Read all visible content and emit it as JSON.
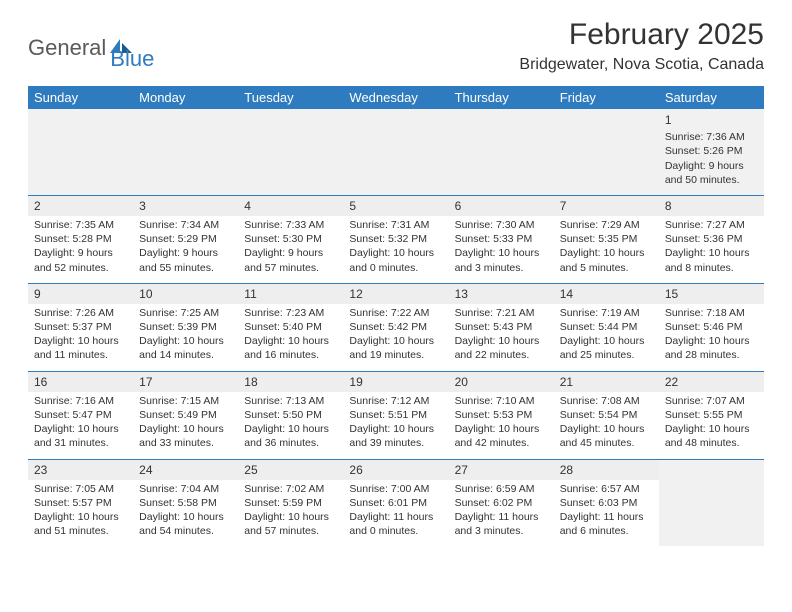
{
  "logo": {
    "part1": "General",
    "part2": "Blue"
  },
  "title": "February 2025",
  "location": "Bridgewater, Nova Scotia, Canada",
  "colors": {
    "header_bg": "#2f7bbf",
    "header_fg": "#ffffff",
    "rule": "#2f7bbf",
    "empty_bg": "#f1f1f1",
    "daynum_bg": "#eeeeee",
    "text": "#333333",
    "logo_gray": "#5a5a5a",
    "logo_blue": "#2f7bbf"
  },
  "dayHeaders": [
    "Sunday",
    "Monday",
    "Tuesday",
    "Wednesday",
    "Thursday",
    "Friday",
    "Saturday"
  ],
  "weeks": [
    [
      null,
      null,
      null,
      null,
      null,
      null,
      {
        "n": "1",
        "sunrise": "7:36 AM",
        "sunset": "5:26 PM",
        "daylight": "9 hours and 50 minutes."
      }
    ],
    [
      {
        "n": "2",
        "sunrise": "7:35 AM",
        "sunset": "5:28 PM",
        "daylight": "9 hours and 52 minutes."
      },
      {
        "n": "3",
        "sunrise": "7:34 AM",
        "sunset": "5:29 PM",
        "daylight": "9 hours and 55 minutes."
      },
      {
        "n": "4",
        "sunrise": "7:33 AM",
        "sunset": "5:30 PM",
        "daylight": "9 hours and 57 minutes."
      },
      {
        "n": "5",
        "sunrise": "7:31 AM",
        "sunset": "5:32 PM",
        "daylight": "10 hours and 0 minutes."
      },
      {
        "n": "6",
        "sunrise": "7:30 AM",
        "sunset": "5:33 PM",
        "daylight": "10 hours and 3 minutes."
      },
      {
        "n": "7",
        "sunrise": "7:29 AM",
        "sunset": "5:35 PM",
        "daylight": "10 hours and 5 minutes."
      },
      {
        "n": "8",
        "sunrise": "7:27 AM",
        "sunset": "5:36 PM",
        "daylight": "10 hours and 8 minutes."
      }
    ],
    [
      {
        "n": "9",
        "sunrise": "7:26 AM",
        "sunset": "5:37 PM",
        "daylight": "10 hours and 11 minutes."
      },
      {
        "n": "10",
        "sunrise": "7:25 AM",
        "sunset": "5:39 PM",
        "daylight": "10 hours and 14 minutes."
      },
      {
        "n": "11",
        "sunrise": "7:23 AM",
        "sunset": "5:40 PM",
        "daylight": "10 hours and 16 minutes."
      },
      {
        "n": "12",
        "sunrise": "7:22 AM",
        "sunset": "5:42 PM",
        "daylight": "10 hours and 19 minutes."
      },
      {
        "n": "13",
        "sunrise": "7:21 AM",
        "sunset": "5:43 PM",
        "daylight": "10 hours and 22 minutes."
      },
      {
        "n": "14",
        "sunrise": "7:19 AM",
        "sunset": "5:44 PM",
        "daylight": "10 hours and 25 minutes."
      },
      {
        "n": "15",
        "sunrise": "7:18 AM",
        "sunset": "5:46 PM",
        "daylight": "10 hours and 28 minutes."
      }
    ],
    [
      {
        "n": "16",
        "sunrise": "7:16 AM",
        "sunset": "5:47 PM",
        "daylight": "10 hours and 31 minutes."
      },
      {
        "n": "17",
        "sunrise": "7:15 AM",
        "sunset": "5:49 PM",
        "daylight": "10 hours and 33 minutes."
      },
      {
        "n": "18",
        "sunrise": "7:13 AM",
        "sunset": "5:50 PM",
        "daylight": "10 hours and 36 minutes."
      },
      {
        "n": "19",
        "sunrise": "7:12 AM",
        "sunset": "5:51 PM",
        "daylight": "10 hours and 39 minutes."
      },
      {
        "n": "20",
        "sunrise": "7:10 AM",
        "sunset": "5:53 PM",
        "daylight": "10 hours and 42 minutes."
      },
      {
        "n": "21",
        "sunrise": "7:08 AM",
        "sunset": "5:54 PM",
        "daylight": "10 hours and 45 minutes."
      },
      {
        "n": "22",
        "sunrise": "7:07 AM",
        "sunset": "5:55 PM",
        "daylight": "10 hours and 48 minutes."
      }
    ],
    [
      {
        "n": "23",
        "sunrise": "7:05 AM",
        "sunset": "5:57 PM",
        "daylight": "10 hours and 51 minutes."
      },
      {
        "n": "24",
        "sunrise": "7:04 AM",
        "sunset": "5:58 PM",
        "daylight": "10 hours and 54 minutes."
      },
      {
        "n": "25",
        "sunrise": "7:02 AM",
        "sunset": "5:59 PM",
        "daylight": "10 hours and 57 minutes."
      },
      {
        "n": "26",
        "sunrise": "7:00 AM",
        "sunset": "6:01 PM",
        "daylight": "11 hours and 0 minutes."
      },
      {
        "n": "27",
        "sunrise": "6:59 AM",
        "sunset": "6:02 PM",
        "daylight": "11 hours and 3 minutes."
      },
      {
        "n": "28",
        "sunrise": "6:57 AM",
        "sunset": "6:03 PM",
        "daylight": "11 hours and 6 minutes."
      },
      null
    ]
  ],
  "labels": {
    "sunrise": "Sunrise:",
    "sunset": "Sunset:",
    "daylight": "Daylight:"
  }
}
